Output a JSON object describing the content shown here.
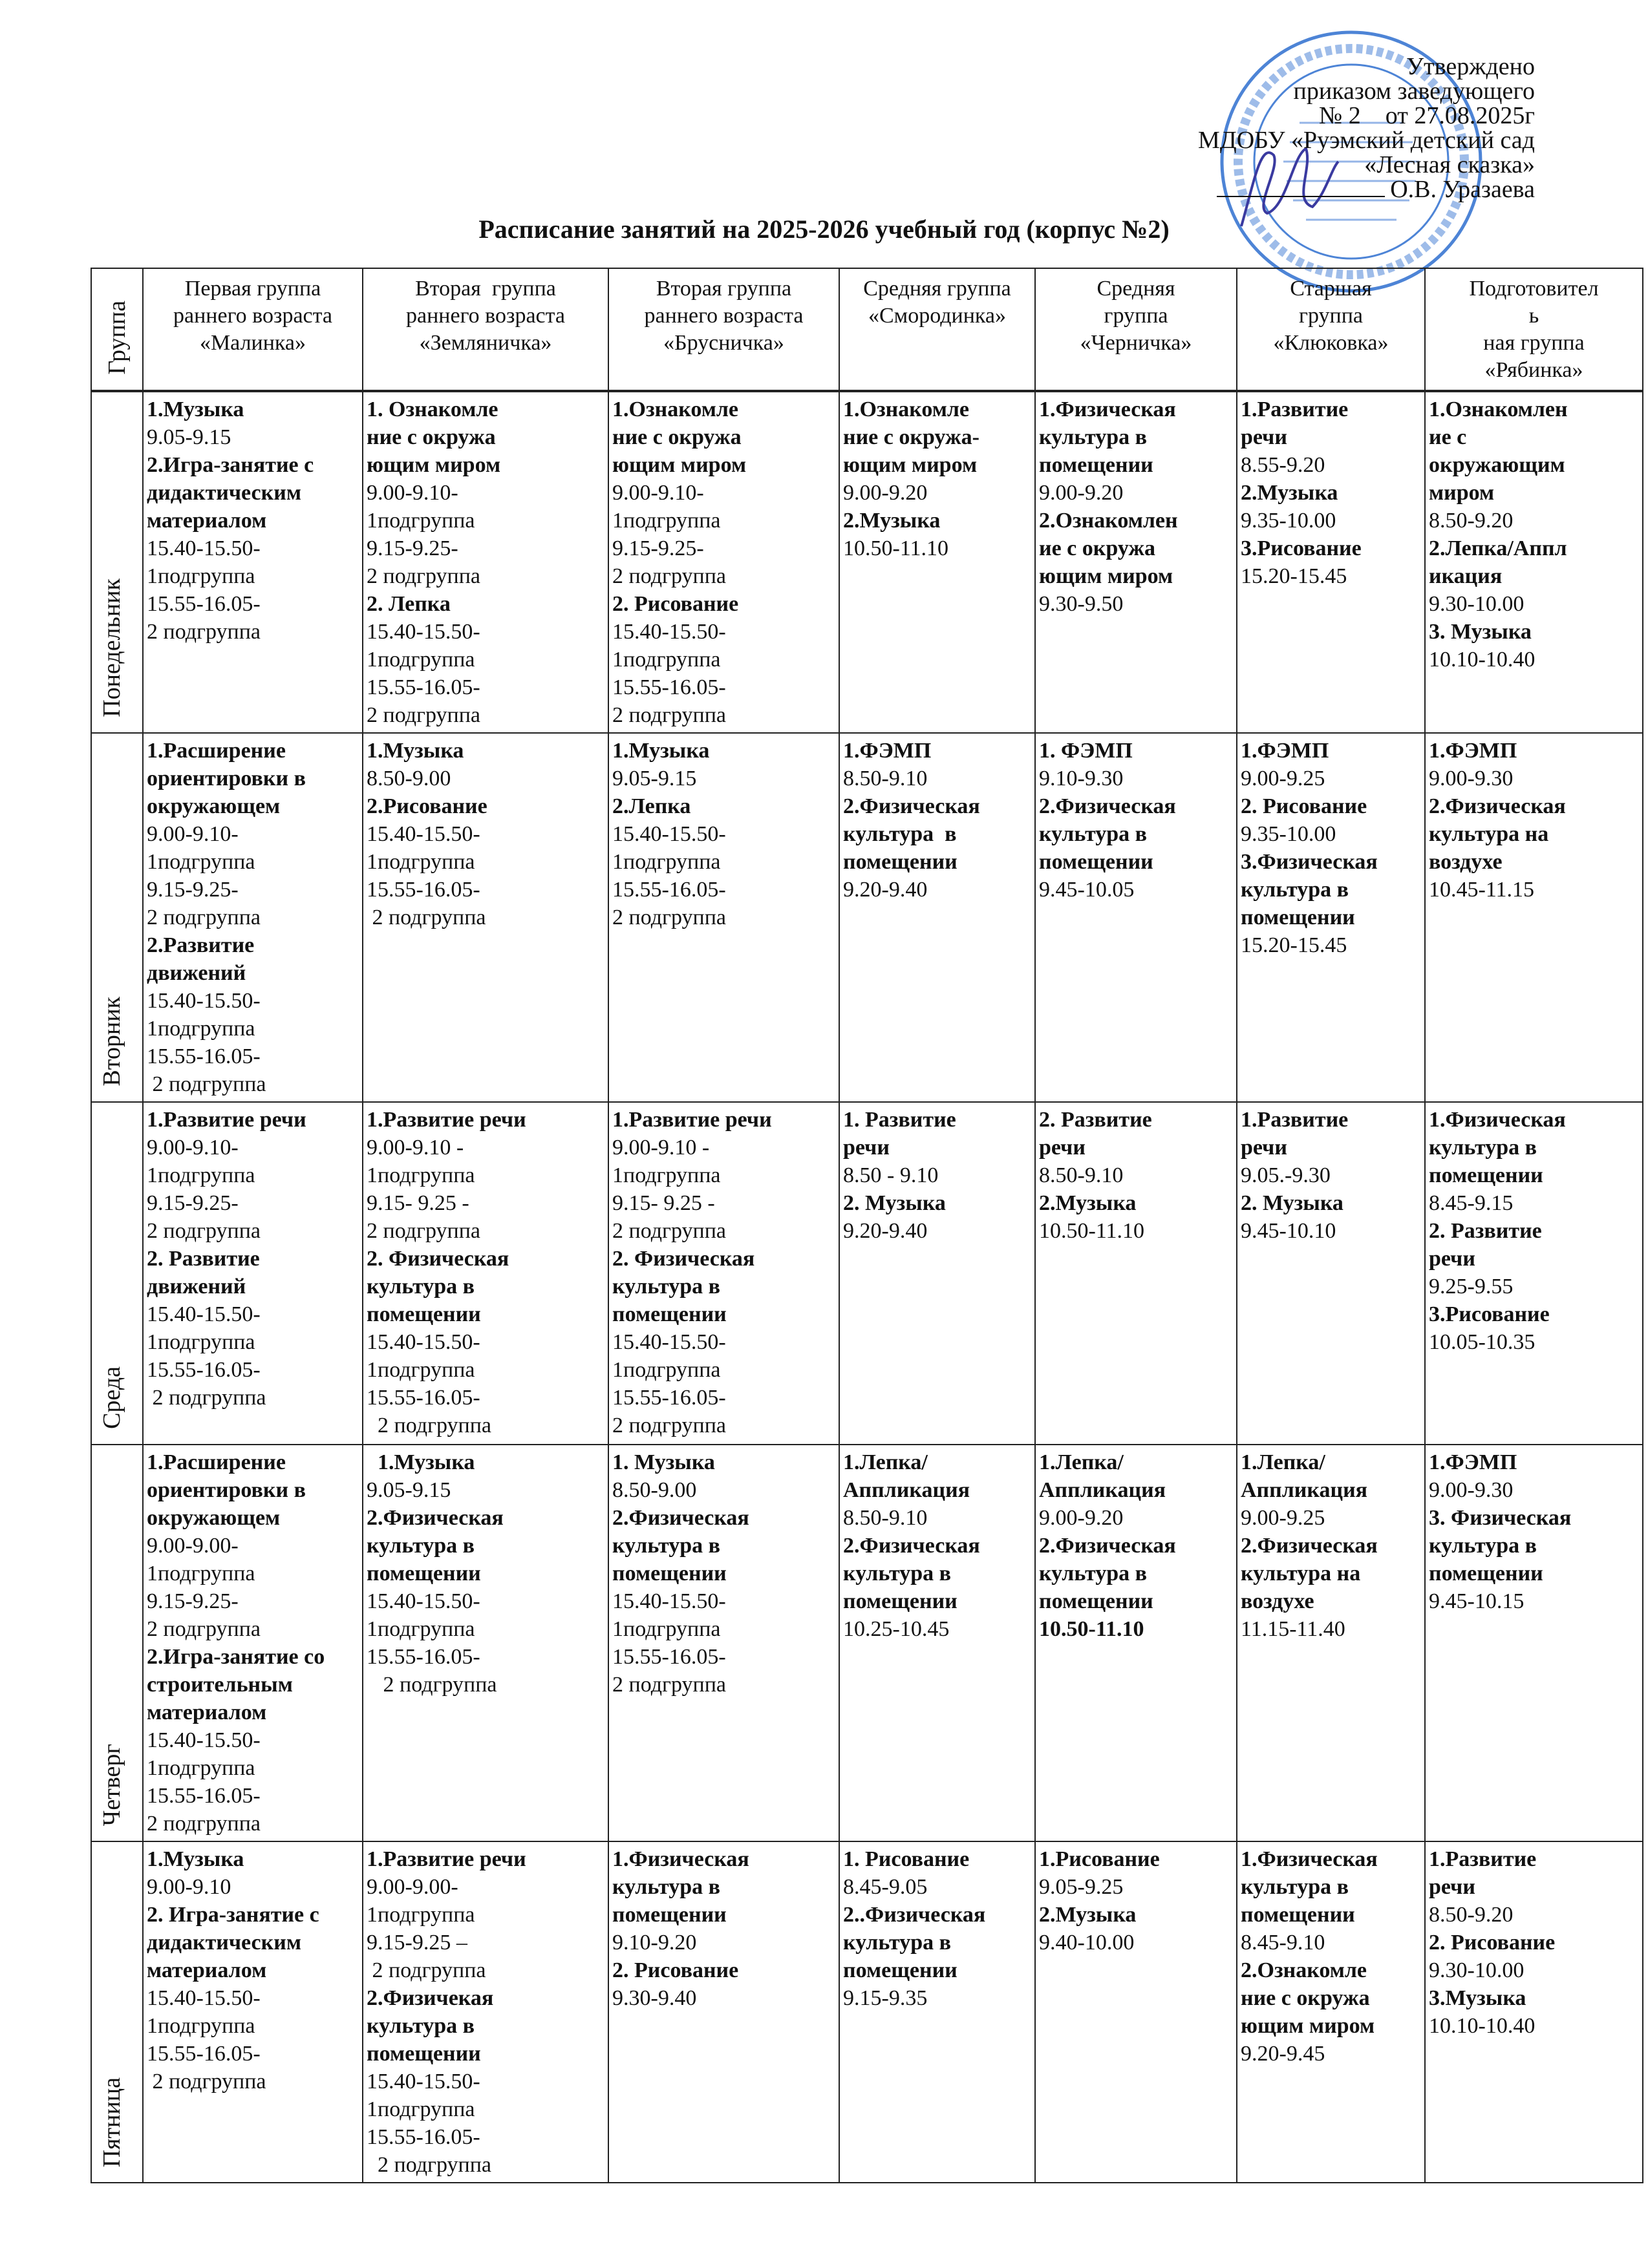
{
  "approval": {
    "line1": "Утверждено",
    "line2": "приказом заведующего",
    "line3": "№ 2    от 27.08.2025г",
    "line4": "МДОБУ «Руэмский детский сад",
    "line5": "«Лесная сказка»",
    "line6": "О.В. Уразаева"
  },
  "stamp": {
    "outer": "РОССИЙСКАЯ ФЕДЕРАЦИЯ * РЕСПУБЛИКА МАРИЙ ЭЛ * МЕДВЕДЕВСКИЙ РАЙОН",
    "inner": "ДОШКОЛЬНОЕ ОБРАЗОВАТЕЛЬНОЕ УЧРЕЖДЕНИЕ",
    "center": "муниципальное дошкольное образовательное бюджетное учреждение Руэмский детский сад «Лесная сказка»",
    "color": "#2f6fd0"
  },
  "title": "Расписание занятий на 2025-2026 учебный год (корпус №2)",
  "table": {
    "corner": "Группа",
    "groups": [
      [
        "Первая группа",
        "раннего возраста",
        "«Малинка»"
      ],
      [
        "Вторая  группа",
        "раннего возраста",
        "«Земляничка»"
      ],
      [
        "Вторая группа",
        "раннего возраста",
        "«Брусничка»"
      ],
      [
        "Средняя группа",
        "«Смородинка»"
      ],
      [
        "Средняя",
        "группа",
        "«Черничка»"
      ],
      [
        "Старшая",
        "группа",
        "«Клюковка»"
      ],
      [
        "Подготовител",
        "ь",
        "ная группа",
        "«Рябинка»"
      ]
    ],
    "days": [
      {
        "name": "Понедельник",
        "cells": [
          [
            {
              "b": "1.Музыка"
            },
            "9.05-9.15",
            {
              "b": "2.Игра-занятие с"
            },
            {
              "b": "дидактическим"
            },
            {
              "b": "материалом"
            },
            "15.40-15.50-",
            "1подгруппа",
            "15.55-16.05-",
            "2 подгруппа"
          ],
          [
            {
              "b": "1. Ознакомле"
            },
            {
              "b": "ние с окружа"
            },
            {
              "b": "ющим миром"
            },
            "9.00-9.10-",
            "1подгруппа",
            "9.15-9.25-",
            "2 подгруппа",
            {
              "b": "2. Лепка"
            },
            "15.40-15.50-",
            "1подгруппа",
            "15.55-16.05-",
            "2 подгруппа"
          ],
          [
            {
              "b": "1.Ознакомле"
            },
            {
              "b": "ние с окружа"
            },
            {
              "b": "ющим миром"
            },
            "9.00-9.10-",
            "1подгруппа",
            "9.15-9.25-",
            "2 подгруппа",
            {
              "b": "2. Рисование"
            },
            "15.40-15.50-",
            "1подгруппа",
            "15.55-16.05-",
            "2 подгруппа"
          ],
          [
            {
              "b": "1.Ознакомле"
            },
            {
              "b": "ние с окружа-"
            },
            {
              "b": "ющим миром"
            },
            "9.00-9.20",
            {
              "b": "2.Музыка"
            },
            "10.50-11.10"
          ],
          [
            {
              "b": "1.Физическая"
            },
            {
              "b": "культура в"
            },
            {
              "b": "помещении"
            },
            "9.00-9.20",
            {
              "b": "2.Ознакомлен"
            },
            {
              "b": "ие с окружа"
            },
            {
              "b": "ющим миром"
            },
            "9.30-9.50"
          ],
          [
            {
              "b": "1.Развитие"
            },
            {
              "b": "речи"
            },
            "8.55-9.20",
            {
              "b": "2.Музыка"
            },
            "9.35-10.00",
            {
              "b": "3.Рисование"
            },
            "15.20-15.45"
          ],
          [
            {
              "b": "1.Ознакомлен"
            },
            {
              "b": "ие с"
            },
            {
              "b": "окружающим"
            },
            {
              "b": "миром"
            },
            "8.50-9.20",
            {
              "b": "2.Лепка/Аппл"
            },
            {
              "b": "икация"
            },
            "9.30-10.00",
            {
              "b": "3. Музыка"
            },
            "10.10-10.40"
          ]
        ]
      },
      {
        "name": "Вторник",
        "cells": [
          [
            {
              "b": "1.Расширение"
            },
            {
              "b": "ориентировки в"
            },
            {
              "b": "окружающем"
            },
            "9.00-9.10-",
            "1подгруппа",
            "9.15-9.25-",
            "2 подгруппа",
            {
              "b": "2.Развитие"
            },
            {
              "b": "движений"
            },
            "15.40-15.50-",
            "1подгруппа",
            "15.55-16.05-",
            " 2 подгруппа"
          ],
          [
            {
              "b": "1.Музыка"
            },
            "8.50-9.00",
            {
              "b": "2.Рисование"
            },
            "15.40-15.50-",
            "1подгруппа",
            "15.55-16.05-",
            " 2 подгруппа"
          ],
          [
            {
              "b": "1.Музыка"
            },
            "9.05-9.15",
            {
              "b": "2.Лепка"
            },
            "15.40-15.50-",
            "1подгруппа",
            "15.55-16.05-",
            "2 подгруппа"
          ],
          [
            {
              "b": "1.ФЭМП"
            },
            "8.50-9.10",
            {
              "b": "2.Физическая"
            },
            {
              "b": "культура  в"
            },
            {
              "b": "помещении"
            },
            "9.20-9.40"
          ],
          [
            {
              "b": "1. ФЭМП"
            },
            "9.10-9.30",
            {
              "b": "2.Физическая"
            },
            {
              "b": "культура в"
            },
            {
              "b": "помещении"
            },
            "9.45-10.05"
          ],
          [
            {
              "b": "1.ФЭМП"
            },
            "9.00-9.25",
            {
              "b": "2. Рисование"
            },
            "9.35-10.00",
            {
              "b": "3.Физическая"
            },
            {
              "b": "культура в"
            },
            {
              "b": "помещении"
            },
            "15.20-15.45"
          ],
          [
            {
              "b": "1.ФЭМП"
            },
            "9.00-9.30",
            {
              "b": "2.Физическая"
            },
            {
              "b": "культура на"
            },
            {
              "b": "воздухе"
            },
            "10.45-11.15"
          ]
        ]
      },
      {
        "name": "Среда",
        "cells": [
          [
            {
              "b": "1.Развитие речи"
            },
            "9.00-9.10-",
            "1подгруппа",
            "9.15-9.25-",
            "2 подгруппа",
            {
              "b": "2. Развитие"
            },
            {
              "b": "движений"
            },
            "15.40-15.50-",
            "1подгруппа",
            "15.55-16.05-",
            " 2 подгруппа"
          ],
          [
            {
              "b": "1.Развитие речи"
            },
            "9.00-9.10 -",
            "1подгруппа",
            "9.15- 9.25 -",
            "2 подгруппа",
            {
              "b": "2. Физическая"
            },
            {
              "b": "культура в"
            },
            {
              "b": "помещении"
            },
            "15.40-15.50-",
            "1подгруппа",
            "15.55-16.05-",
            "  2 подгруппа"
          ],
          [
            {
              "b": "1.Развитие речи"
            },
            "9.00-9.10 -",
            "1подгруппа",
            "9.15- 9.25 -",
            "2 подгруппа",
            {
              "b": "2. Физическая"
            },
            {
              "b": "культура в"
            },
            {
              "b": "помещении"
            },
            "15.40-15.50-",
            "1подгруппа",
            "15.55-16.05-",
            "2 подгруппа"
          ],
          [
            {
              "b": "1. Развитие"
            },
            {
              "b": "речи"
            },
            "8.50 - 9.10",
            {
              "b": "2. Музыка"
            },
            "9.20-9.40"
          ],
          [
            {
              "b": "2. Развитие"
            },
            {
              "b": "речи"
            },
            "8.50-9.10",
            {
              "b": "2.Музыка"
            },
            "10.50-11.10"
          ],
          [
            {
              "b": "1.Развитие"
            },
            {
              "b": "речи"
            },
            "9.05.-9.30",
            {
              "b": "2. Музыка"
            },
            "9.45-10.10"
          ],
          [
            {
              "b": "1.Физическая"
            },
            {
              "b": "культура в"
            },
            {
              "b": "помещении"
            },
            "8.45-9.15",
            {
              "b": "2. Развитие"
            },
            {
              "b": "речи"
            },
            "9.25-9.55",
            {
              "b": "3.Рисование"
            },
            "10.05-10.35"
          ]
        ]
      },
      {
        "name": "Четверг",
        "cells": [
          [
            {
              "b": "1.Расширение"
            },
            {
              "b": "ориентировки в"
            },
            {
              "b": "окружающем"
            },
            "9.00-9.00-",
            "1подгруппа",
            "9.15-9.25-",
            "2 подгруппа",
            {
              "b": "2.Игра-занятие со"
            },
            {
              "b": "строительным"
            },
            {
              "b": "материалом"
            },
            "15.40-15.50-",
            "1подгруппа",
            "15.55-16.05-",
            "2 подгруппа"
          ],
          [
            {
              "b": "  1.Музыка"
            },
            "9.05-9.15",
            {
              "b": "2.Физическая"
            },
            {
              "b": "культура в"
            },
            {
              "b": "помещении"
            },
            "15.40-15.50-",
            "1подгруппа",
            "15.55-16.05-",
            "   2 подгруппа"
          ],
          [
            {
              "b": "1. Музыка"
            },
            "8.50-9.00",
            {
              "b": "2.Физическая"
            },
            {
              "b": "культура в"
            },
            {
              "b": "помещении"
            },
            "15.40-15.50-",
            "1подгруппа",
            "15.55-16.05-",
            "2 подгруппа"
          ],
          [
            {
              "b": "1.Лепка/"
            },
            {
              "b": "Аппликация"
            },
            "8.50-9.10",
            {
              "b": "2.Физическая"
            },
            {
              "b": "культура в"
            },
            {
              "b": "помещении"
            },
            "10.25-10.45"
          ],
          [
            {
              "b": "1.Лепка/"
            },
            {
              "b": "Аппликация"
            },
            "9.00-9.20",
            {
              "b": "2.Физическая"
            },
            {
              "b": "культура в"
            },
            {
              "b": "помещении"
            },
            {
              "b": "10.50-11.10"
            }
          ],
          [
            {
              "b": "1.Лепка/"
            },
            {
              "b": "Аппликация"
            },
            "9.00-9.25",
            {
              "b": "2.Физическая"
            },
            {
              "b": "культура на"
            },
            {
              "b": "воздухе"
            },
            "11.15-11.40"
          ],
          [
            {
              "b": "1.ФЭМП"
            },
            "9.00-9.30",
            {
              "b": "3. Физическая"
            },
            {
              "b": "культура в"
            },
            {
              "b": "помещении"
            },
            "9.45-10.15"
          ]
        ]
      },
      {
        "name": "Пятница",
        "cells": [
          [
            {
              "b": "1.Музыка"
            },
            "9.00-9.10",
            {
              "b": "2. Игра-занятие с"
            },
            {
              "b": "дидактическим"
            },
            {
              "b": "материалом"
            },
            "15.40-15.50-",
            "1подгруппа",
            "15.55-16.05-",
            " 2 подгруппа"
          ],
          [
            {
              "b": "1.Развитие речи"
            },
            "9.00-9.00-",
            "1подгруппа",
            "9.15-9.25 –",
            " 2 подгруппа",
            {
              "b": "2.Физичекая"
            },
            {
              "b": "культура в"
            },
            {
              "b": "помещении"
            },
            "15.40-15.50-",
            "1подгруппа",
            "15.55-16.05-",
            "  2 подгруппа"
          ],
          [
            {
              "b": "1.Физическая"
            },
            {
              "b": "культура в"
            },
            {
              "b": "помещении"
            },
            "9.10-9.20",
            {
              "b": "2. Рисование"
            },
            "9.30-9.40"
          ],
          [
            {
              "b": "1. Рисование"
            },
            "8.45-9.05",
            {
              "b": "2..Физическая"
            },
            {
              "b": "культура в"
            },
            {
              "b": "помещении"
            },
            "9.15-9.35"
          ],
          [
            {
              "b": "1.Рисование"
            },
            "9.05-9.25",
            {
              "b": "2.Музыка"
            },
            "9.40-10.00"
          ],
          [
            {
              "b": "1.Физическая"
            },
            {
              "b": "культура в"
            },
            {
              "b": "помещении"
            },
            "8.45-9.10",
            {
              "b": "2.Ознакомле"
            },
            {
              "b": "ние с окружа"
            },
            {
              "b": "ющим миром"
            },
            "9.20-9.45"
          ],
          [
            {
              "b": "1.Развитие"
            },
            {
              "b": "речи"
            },
            "8.50-9.20",
            {
              "b": "2. Рисование"
            },
            "9.30-10.00",
            {
              "b": "3.Музыка"
            },
            "10.10-10.40"
          ]
        ]
      }
    ]
  }
}
